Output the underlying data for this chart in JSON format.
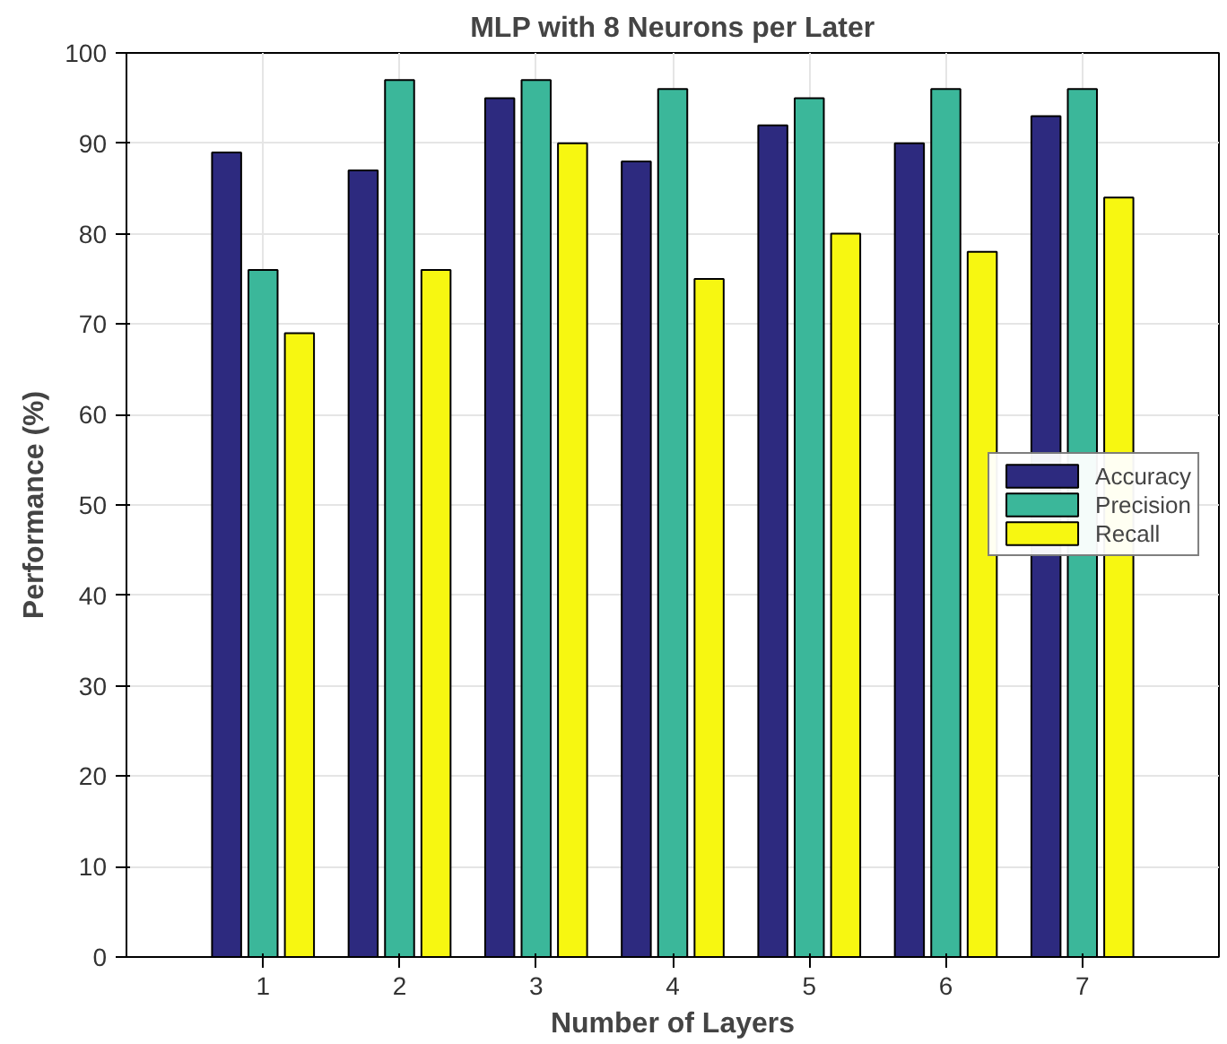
{
  "chart_data": {
    "type": "bar",
    "title": "MLP with 8 Neurons per Later",
    "xlabel": "Number of Layers",
    "ylabel": "Performance (%)",
    "categories": [
      "1",
      "2",
      "3",
      "4",
      "5",
      "6",
      "7"
    ],
    "series": [
      {
        "name": "Accuracy",
        "color": "#2d2a7f",
        "values": [
          89,
          87,
          95,
          88,
          92,
          90,
          93
        ]
      },
      {
        "name": "Precision",
        "color": "#3bb79a",
        "values": [
          76,
          97,
          97,
          96,
          95,
          96,
          96
        ]
      },
      {
        "name": "Recall",
        "color": "#f7f711",
        "values": [
          69,
          76,
          90,
          75,
          80,
          78,
          84
        ]
      }
    ],
    "ylim": [
      0,
      100
    ],
    "yticks": [
      0,
      10,
      20,
      30,
      40,
      50,
      60,
      70,
      80,
      90,
      100
    ],
    "grid": true,
    "legend": "right"
  }
}
